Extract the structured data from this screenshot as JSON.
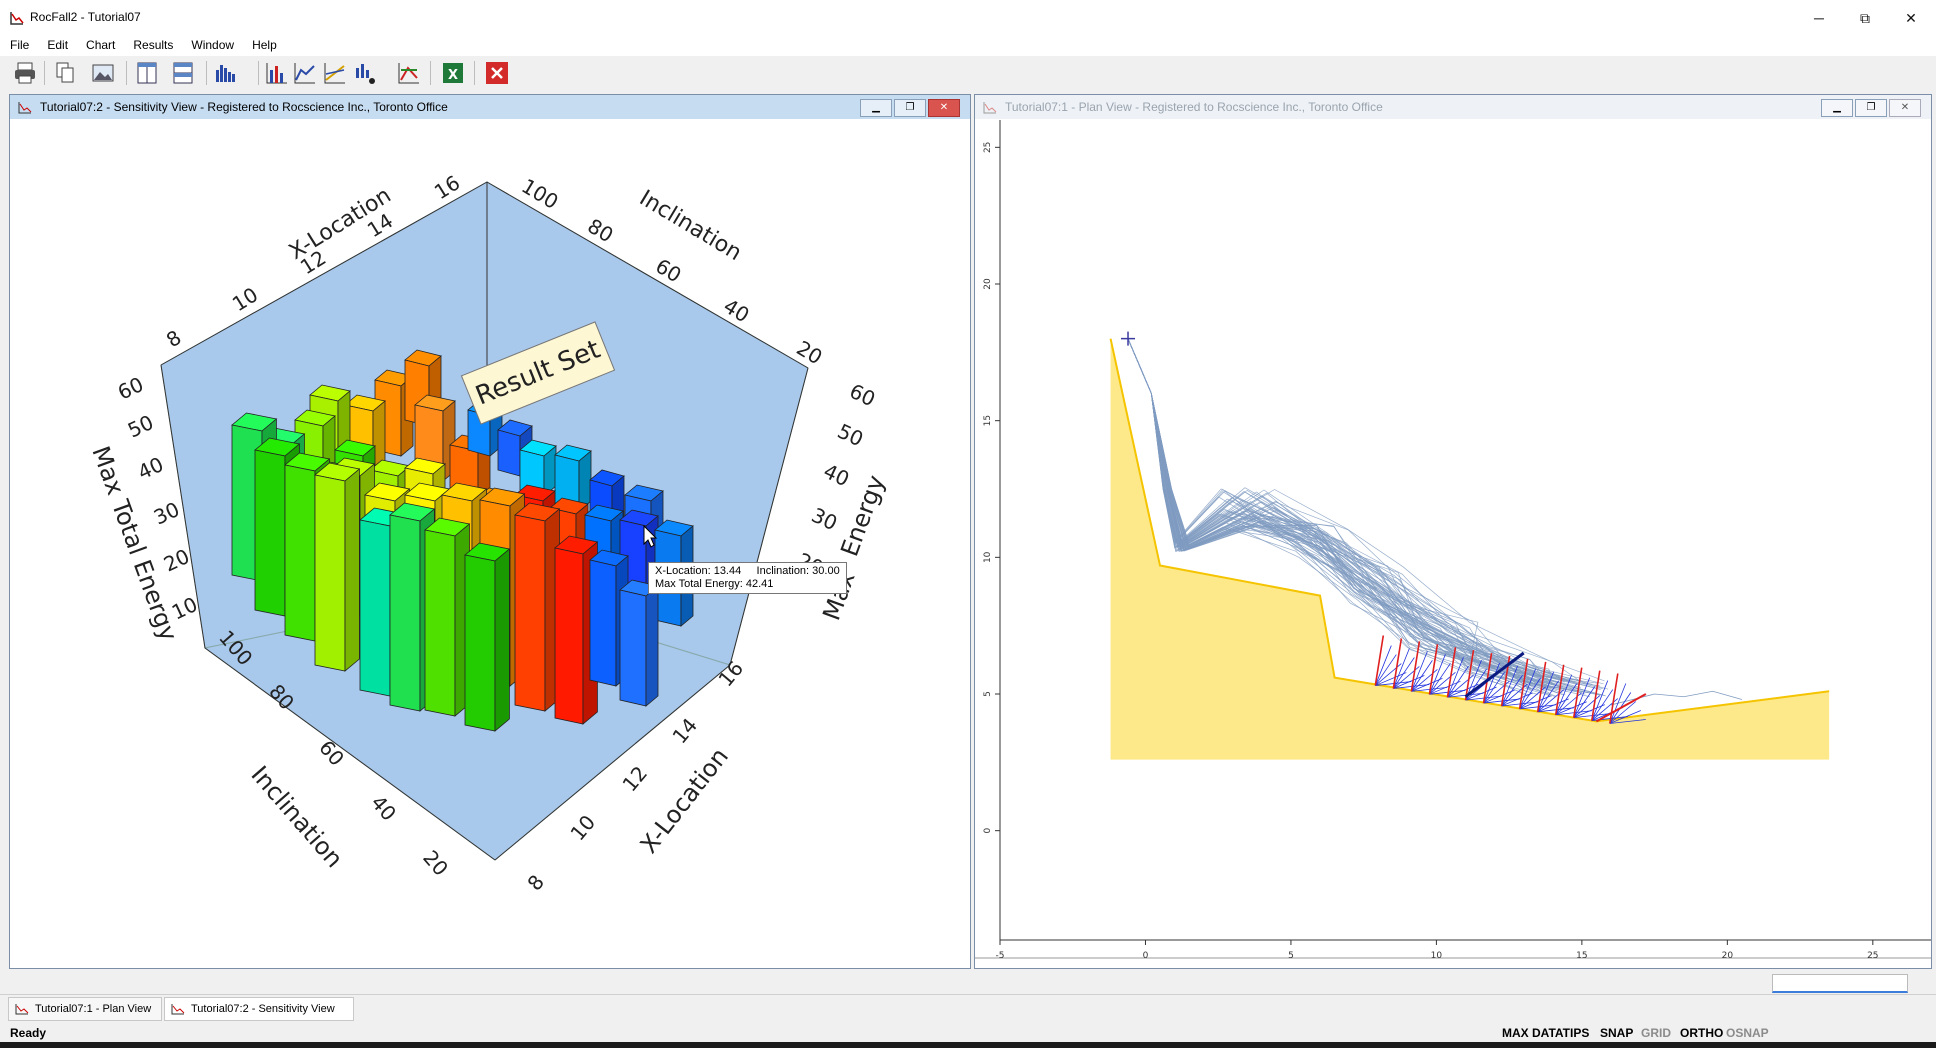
{
  "app": {
    "title": "RocFall2 - Tutorial07"
  },
  "window_controls": {
    "minimize": "─",
    "maximize": "⧉",
    "close": "✕"
  },
  "menu": [
    "File",
    "Edit",
    "Chart",
    "Results",
    "Window",
    "Help"
  ],
  "toolbar_icons": [
    "print-icon",
    "copy-icon",
    "export-image-icon",
    "vertical-tile-icon",
    "horizontal-tile-icon",
    "histogram-icon",
    "bar-chart-icon",
    "line-chart-icon",
    "scatter-chart-icon",
    "cumulative-chart-icon",
    "sensitivity-icon",
    "excel-icon",
    "close-red-icon"
  ],
  "sensitivity_window": {
    "title": "Tutorial07:2 - Sensitivity View - Registered to Rocscience Inc., Toronto Office",
    "labels": {
      "x_location": "X-Location",
      "inclination": "Inclination",
      "max_total_energy": "Max Total Energy",
      "result_set": "Result Set",
      "energy_partial": "Energy",
      "max_partial": "Max"
    },
    "ticks": {
      "x_location_top": [
        "8",
        "10",
        "12",
        "14",
        "16"
      ],
      "inclination_top": [
        "100",
        "80",
        "60",
        "40",
        "20"
      ],
      "energy_left": [
        "10",
        "20",
        "30",
        "40",
        "50",
        "60"
      ],
      "energy_right": [
        "20",
        "30",
        "40",
        "50",
        "60"
      ],
      "inclination_bottom": [
        "100",
        "80",
        "60",
        "40",
        "20"
      ],
      "x_location_bottom": [
        "16",
        "14",
        "12",
        "10",
        "8"
      ]
    },
    "tooltip": {
      "line1_a": "X-Location: 13.44",
      "line1_b": "Inclination: 30.00",
      "line2": "Max Total Energy: 42.41"
    }
  },
  "plan_window": {
    "title": "Tutorial07:1 - Plan View - Registered to Rocscience Inc., Toronto Office",
    "x_ticks": [
      "-5",
      "0",
      "5",
      "10",
      "15",
      "20",
      "25"
    ],
    "y_ticks": [
      "0",
      "5",
      "10",
      "15",
      "20",
      "25"
    ]
  },
  "chart_data": {
    "type": "scatter",
    "x_axis": {
      "ticks": [
        -5,
        0,
        5,
        10,
        15,
        20,
        25
      ],
      "range": [
        -5,
        27
      ]
    },
    "y_axis": {
      "ticks": [
        0,
        5,
        10,
        15,
        20,
        25
      ],
      "range": [
        -4,
        26
      ]
    },
    "slope_profile": {
      "x": [
        -1.2,
        0.5,
        6,
        6.5,
        15.5,
        23.5
      ],
      "y": [
        18,
        9.7,
        8.6,
        5.6,
        4,
        5.1
      ]
    },
    "seeder": {
      "x": -0.6,
      "y": 18
    }
  },
  "doc_tabs": [
    "Tutorial07:1 - Plan View",
    "Tutorial07:2 - Sensitivity View"
  ],
  "status": {
    "left": "Ready",
    "items": [
      {
        "label": "MAX DATATIPS",
        "on": true
      },
      {
        "label": "SNAP",
        "on": true
      },
      {
        "label": "GRID",
        "on": false
      },
      {
        "label": "ORTHO",
        "on": true
      },
      {
        "label": "OSNAP",
        "on": false
      }
    ]
  },
  "colors": {
    "slope_fill": "#fde98a",
    "slope_line": "#f5c400",
    "path": "#7f9bc0",
    "barrier_red": "#e02020",
    "barrier_blue": "#2233dd",
    "chart_bg": "#a8c8ec"
  }
}
